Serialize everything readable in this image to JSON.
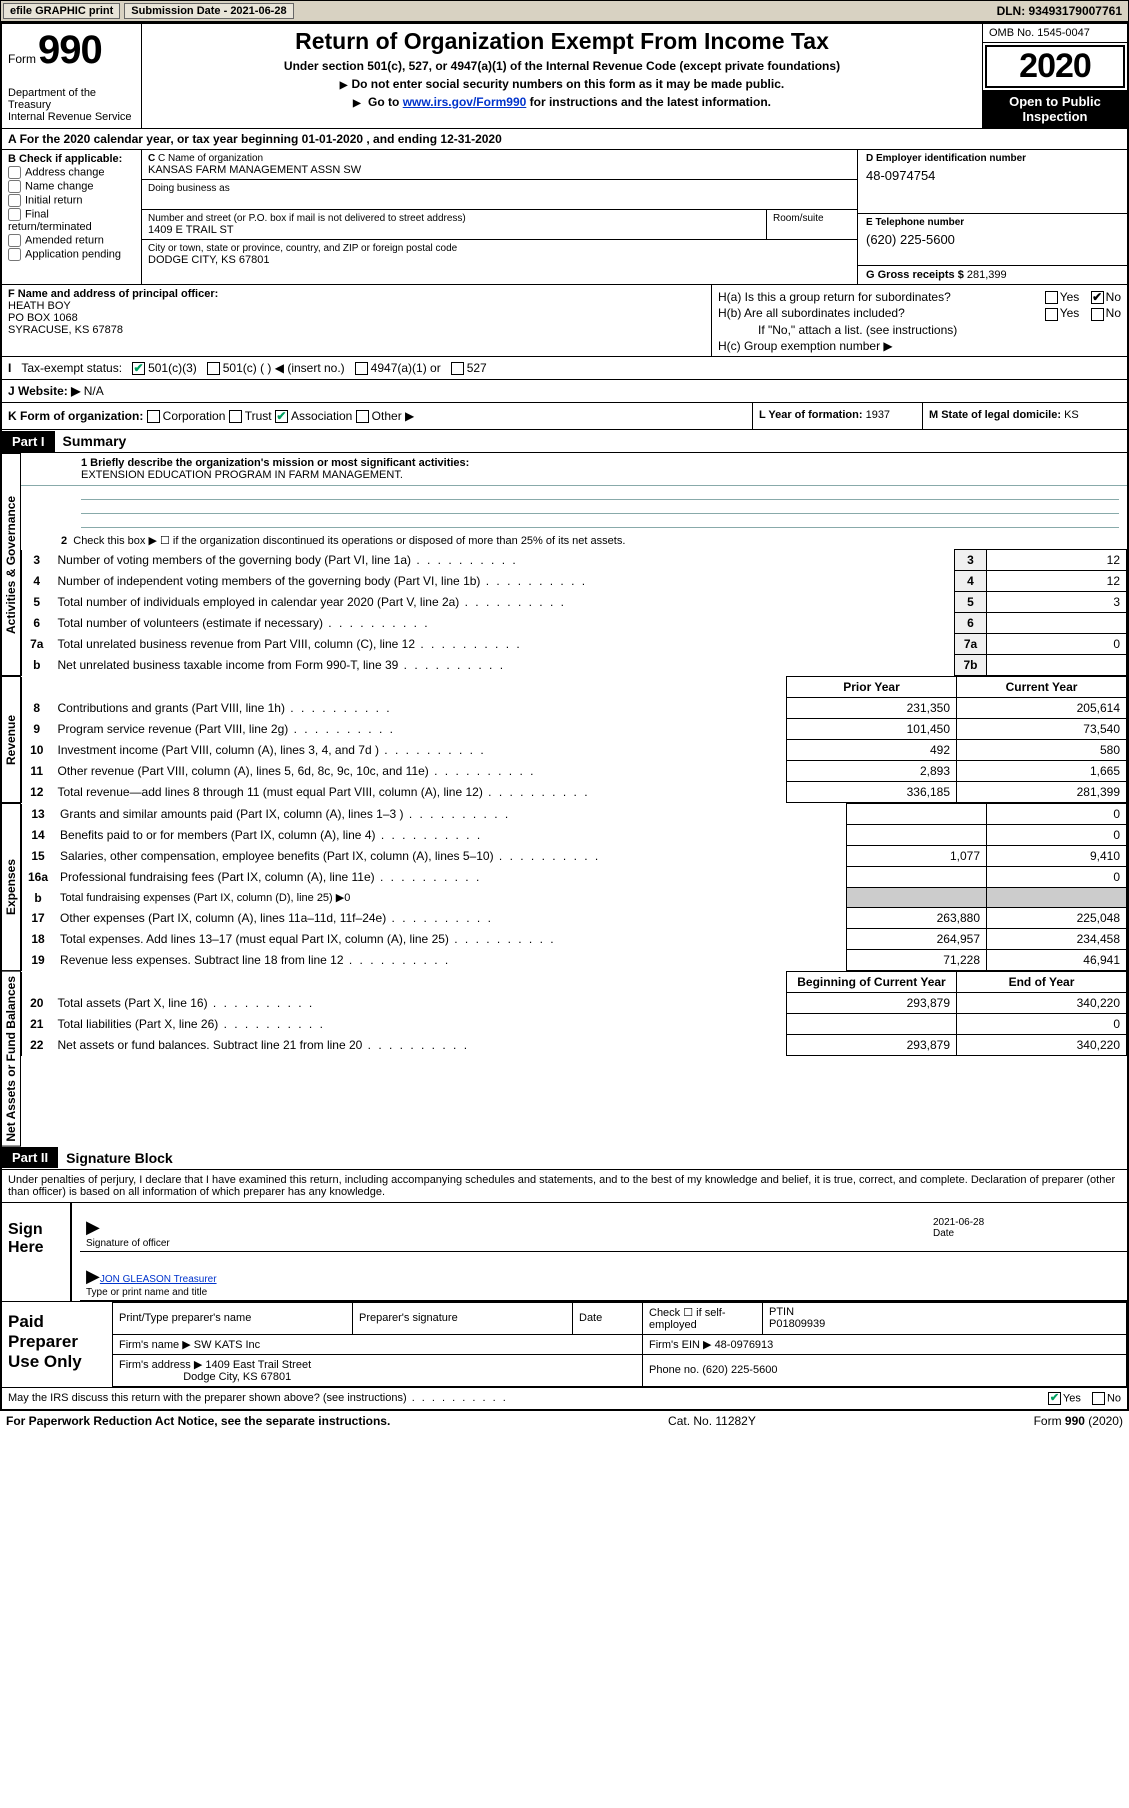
{
  "topbar": {
    "efile": "efile GRAPHIC print",
    "submission_label": "Submission Date - 2021-06-28",
    "dln_label": "DLN: 93493179007761"
  },
  "header": {
    "form_word": "Form",
    "form_num": "990",
    "dept": "Department of the Treasury\nInternal Revenue Service",
    "title": "Return of Organization Exempt From Income Tax",
    "subtitle": "Under section 501(c), 527, or 4947(a)(1) of the Internal Revenue Code (except private foundations)",
    "instr1": "Do not enter social security numbers on this form as it may be made public.",
    "instr2_pre": "Go to ",
    "instr2_link": "www.irs.gov/Form990",
    "instr2_post": " for instructions and the latest information.",
    "omb": "OMB No. 1545-0047",
    "year": "2020",
    "open_pub": "Open to Public Inspection"
  },
  "rowA": "For the 2020 calendar year, or tax year beginning 01-01-2020   , and ending 12-31-2020",
  "sectionB": {
    "label": "B Check if applicable:",
    "opts": [
      "Address change",
      "Name change",
      "Initial return",
      "Final return/terminated",
      "Amended return",
      "Application pending"
    ]
  },
  "sectionC": {
    "name_label": "C Name of organization",
    "name": "KANSAS FARM MANAGEMENT ASSN SW",
    "dba_label": "Doing business as",
    "street_label": "Number and street (or P.O. box if mail is not delivered to street address)",
    "street": "1409 E TRAIL ST",
    "room_label": "Room/suite",
    "city_label": "City or town, state or province, country, and ZIP or foreign postal code",
    "city": "DODGE CITY, KS  67801"
  },
  "sectionD": {
    "label": "D Employer identification number",
    "val": "48-0974754"
  },
  "sectionE": {
    "label": "E Telephone number",
    "val": "(620) 225-5600"
  },
  "sectionG": {
    "label": "G Gross receipts $",
    "val": "281,399"
  },
  "sectionF": {
    "label": "F  Name and address of principal officer:",
    "name": "HEATH BOY",
    "addr1": "PO BOX 1068",
    "addr2": "SYRACUSE, KS  67878"
  },
  "sectionH": {
    "a": "H(a)  Is this a group return for subordinates?",
    "b": "H(b)  Are all subordinates included?",
    "b_note": "If \"No,\" attach a list. (see instructions)",
    "c": "H(c)  Group exemption number ▶"
  },
  "rowI": {
    "label": "Tax-exempt status:",
    "opts": [
      "501(c)(3)",
      "501(c) (  ) ◀ (insert no.)",
      "4947(a)(1) or",
      "527"
    ]
  },
  "rowJ": {
    "label": "J   Website: ▶",
    "val": "N/A"
  },
  "rowK": {
    "label": "K Form of organization:",
    "opts": [
      "Corporation",
      "Trust",
      "Association",
      "Other ▶"
    ]
  },
  "rowL": {
    "label": "L Year of formation:",
    "val": "1937"
  },
  "rowM": {
    "label": "M State of legal domicile:",
    "val": "KS"
  },
  "part1": {
    "num": "Part I",
    "title": "Summary",
    "line1_label": "1  Briefly describe the organization's mission or most significant activities:",
    "line1_val": "EXTENSION EDUCATION PROGRAM IN FARM MANAGEMENT.",
    "line2": "Check this box ▶  ☐  if the organization discontinued its operations or disposed of more than 25% of its net assets.",
    "rows_ag": [
      {
        "n": "3",
        "d": "Number of voting members of the governing body (Part VI, line 1a)",
        "box": "3",
        "v": "12"
      },
      {
        "n": "4",
        "d": "Number of independent voting members of the governing body (Part VI, line 1b)",
        "box": "4",
        "v": "12"
      },
      {
        "n": "5",
        "d": "Total number of individuals employed in calendar year 2020 (Part V, line 2a)",
        "box": "5",
        "v": "3"
      },
      {
        "n": "6",
        "d": "Total number of volunteers (estimate if necessary)",
        "box": "6",
        "v": ""
      },
      {
        "n": "7a",
        "d": "Total unrelated business revenue from Part VIII, column (C), line 12",
        "box": "7a",
        "v": "0"
      },
      {
        "n": "b",
        "d": "Net unrelated business taxable income from Form 990-T, line 39",
        "box": "7b",
        "v": ""
      }
    ],
    "col_prior": "Prior Year",
    "col_curr": "Current Year",
    "rows_rev": [
      {
        "n": "8",
        "d": "Contributions and grants (Part VIII, line 1h)",
        "p": "231,350",
        "c": "205,614"
      },
      {
        "n": "9",
        "d": "Program service revenue (Part VIII, line 2g)",
        "p": "101,450",
        "c": "73,540"
      },
      {
        "n": "10",
        "d": "Investment income (Part VIII, column (A), lines 3, 4, and 7d )",
        "p": "492",
        "c": "580"
      },
      {
        "n": "11",
        "d": "Other revenue (Part VIII, column (A), lines 5, 6d, 8c, 9c, 10c, and 11e)",
        "p": "2,893",
        "c": "1,665"
      },
      {
        "n": "12",
        "d": "Total revenue—add lines 8 through 11 (must equal Part VIII, column (A), line 12)",
        "p": "336,185",
        "c": "281,399"
      }
    ],
    "rows_exp": [
      {
        "n": "13",
        "d": "Grants and similar amounts paid (Part IX, column (A), lines 1–3 )",
        "p": "",
        "c": "0"
      },
      {
        "n": "14",
        "d": "Benefits paid to or for members (Part IX, column (A), line 4)",
        "p": "",
        "c": "0"
      },
      {
        "n": "15",
        "d": "Salaries, other compensation, employee benefits (Part IX, column (A), lines 5–10)",
        "p": "1,077",
        "c": "9,410"
      },
      {
        "n": "16a",
        "d": "Professional fundraising fees (Part IX, column (A), line 11e)",
        "p": "",
        "c": "0"
      },
      {
        "n": "b",
        "d": "Total fundraising expenses (Part IX, column (D), line 25) ▶0",
        "p": "—",
        "c": "—"
      },
      {
        "n": "17",
        "d": "Other expenses (Part IX, column (A), lines 11a–11d, 11f–24e)",
        "p": "263,880",
        "c": "225,048"
      },
      {
        "n": "18",
        "d": "Total expenses. Add lines 13–17 (must equal Part IX, column (A), line 25)",
        "p": "264,957",
        "c": "234,458"
      },
      {
        "n": "19",
        "d": "Revenue less expenses. Subtract line 18 from line 12",
        "p": "71,228",
        "c": "46,941"
      }
    ],
    "col_begin": "Beginning of Current Year",
    "col_end": "End of Year",
    "rows_net": [
      {
        "n": "20",
        "d": "Total assets (Part X, line 16)",
        "p": "293,879",
        "c": "340,220"
      },
      {
        "n": "21",
        "d": "Total liabilities (Part X, line 26)",
        "p": "",
        "c": "0"
      },
      {
        "n": "22",
        "d": "Net assets or fund balances. Subtract line 21 from line 20",
        "p": "293,879",
        "c": "340,220"
      }
    ],
    "side_ag": "Activities & Governance",
    "side_rev": "Revenue",
    "side_exp": "Expenses",
    "side_net": "Net Assets or Fund Balances"
  },
  "part2": {
    "num": "Part II",
    "title": "Signature Block",
    "perjury": "Under penalties of perjury, I declare that I have examined this return, including accompanying schedules and statements, and to the best of my knowledge and belief, it is true, correct, and complete. Declaration of preparer (other than officer) is based on all information of which preparer has any knowledge.",
    "sign_here": "Sign Here",
    "sig_officer": "Signature of officer",
    "sig_date_label": "Date",
    "sig_date": "2021-06-28",
    "officer_name": "JON GLEASON  Treasurer",
    "type_name": "Type or print name and title",
    "paid": "Paid Preparer Use Only",
    "prep_name_label": "Print/Type preparer's name",
    "prep_sig_label": "Preparer's signature",
    "date_label": "Date",
    "check_if": "Check ☐ if self-employed",
    "ptin_label": "PTIN",
    "ptin": "P01809939",
    "firm_name_label": "Firm's name    ▶",
    "firm_name": "SW KATS Inc",
    "firm_ein_label": "Firm's EIN ▶",
    "firm_ein": "48-0976913",
    "firm_addr_label": "Firm's address ▶",
    "firm_addr1": "1409 East Trail Street",
    "firm_addr2": "Dodge City, KS  67801",
    "phone_label": "Phone no.",
    "phone": "(620) 225-5600",
    "discuss": "May the IRS discuss this return with the preparer shown above? (see instructions)"
  },
  "footer": {
    "pra": "For Paperwork Reduction Act Notice, see the separate instructions.",
    "cat": "Cat. No. 11282Y",
    "form": "Form 990 (2020)"
  }
}
